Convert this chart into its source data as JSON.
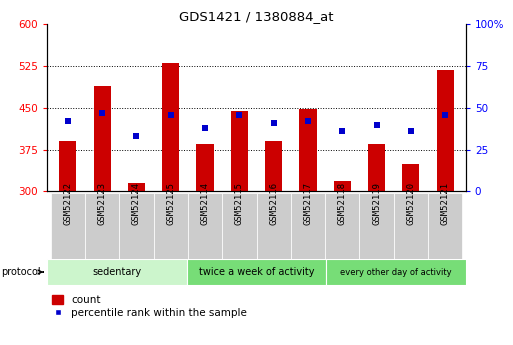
{
  "title": "GDS1421 / 1380884_at",
  "samples": [
    "GSM52122",
    "GSM52123",
    "GSM52124",
    "GSM52125",
    "GSM52114",
    "GSM52115",
    "GSM52116",
    "GSM52117",
    "GSM52118",
    "GSM52119",
    "GSM52120",
    "GSM52121"
  ],
  "count_values": [
    390,
    490,
    315,
    530,
    385,
    445,
    390,
    448,
    318,
    385,
    350,
    518
  ],
  "percentile_values": [
    42,
    47,
    33,
    46,
    38,
    46,
    41,
    42,
    36,
    40,
    36,
    46
  ],
  "groups": [
    {
      "label": "sedentary",
      "start": 0,
      "end": 4,
      "color": "#c8f0b0"
    },
    {
      "label": "twice a week of activity",
      "start": 4,
      "end": 8,
      "color": "#80e060"
    },
    {
      "label": "every other day of activity",
      "start": 8,
      "end": 12,
      "color": "#80e060"
    }
  ],
  "ylim_left": [
    300,
    600
  ],
  "ylim_right": [
    0,
    100
  ],
  "yticks_left": [
    300,
    375,
    450,
    525,
    600
  ],
  "yticks_right": [
    0,
    25,
    50,
    75,
    100
  ],
  "bar_color": "#cc0000",
  "dot_color": "#0000cc",
  "bar_width": 0.5,
  "bar_bottom": 300,
  "xlabel_bg_color": "#d0d0d0",
  "group_color_light": "#ccf5cc",
  "group_color_dark": "#77dd77"
}
